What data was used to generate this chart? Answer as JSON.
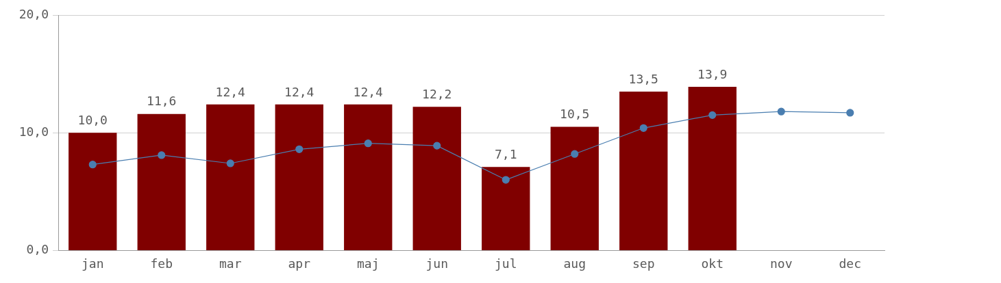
{
  "chart_data": {
    "type": "bar",
    "categories": [
      "jan",
      "feb",
      "mar",
      "apr",
      "maj",
      "jun",
      "jul",
      "aug",
      "sep",
      "okt",
      "nov",
      "dec"
    ],
    "series": [
      {
        "color": "#800000",
        "values": [
          10.0,
          11.6,
          12.4,
          12.4,
          12.4,
          12.2,
          7.1,
          10.5,
          13.5,
          13.9,
          null,
          null
        ],
        "value_labels": [
          "10,0",
          "11,6",
          "12,4",
          "12,4",
          "12,4",
          "12,2",
          "7,1",
          "10,5",
          "13,5",
          "13,9",
          null,
          null
        ]
      },
      {
        "type": "line",
        "color": "#4a7eb0",
        "marker": "circle",
        "line_style": "solid",
        "values": [
          7.3,
          8.1,
          7.4,
          8.6,
          9.1,
          8.9,
          6.0,
          8.2,
          10.4,
          11.5,
          11.8,
          11.7
        ]
      }
    ],
    "ylim": [
      0,
      20
    ],
    "yticks": [
      {
        "value": 0,
        "label": "0,0"
      },
      {
        "value": 10,
        "label": "10,0"
      },
      {
        "value": 20,
        "label": "20,0"
      }
    ],
    "grid": "y",
    "legend": false
  }
}
